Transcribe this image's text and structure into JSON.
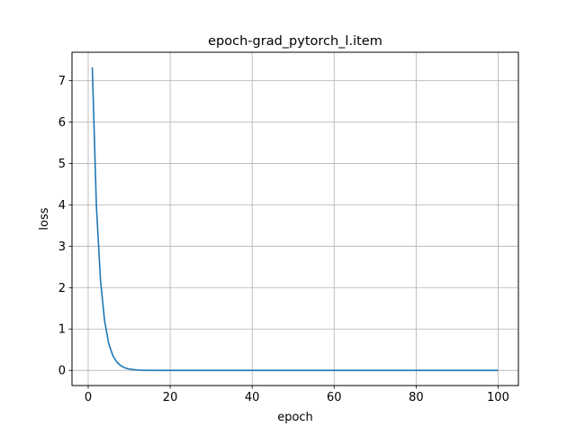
{
  "chart_data": {
    "type": "line",
    "title": "epoch-grad_pytorch_l.item",
    "xlabel": "epoch",
    "ylabel": "loss",
    "xlim": [
      -3.95,
      104.95
    ],
    "ylim": [
      -0.366,
      7.686
    ],
    "xticks": [
      0,
      20,
      40,
      60,
      80,
      100
    ],
    "yticks": [
      0,
      1,
      2,
      3,
      4,
      5,
      6,
      7
    ],
    "grid": true,
    "series": [
      {
        "color": "#1f77b4",
        "x": [
          1,
          2,
          3,
          4,
          5,
          6,
          7,
          8,
          9,
          10,
          11,
          12,
          13,
          14,
          15,
          16,
          17,
          18,
          19,
          20,
          25,
          30,
          40,
          50,
          60,
          70,
          80,
          90,
          100
        ],
        "y": [
          7.32,
          3.98,
          2.18,
          1.2,
          0.65,
          0.36,
          0.2,
          0.11,
          0.06,
          0.034,
          0.019,
          0.011,
          0.006,
          0.0035,
          0.002,
          0.0012,
          0.0007,
          0.0004,
          0.0002,
          0.0001,
          2e-05,
          0,
          0,
          0,
          0,
          0,
          0,
          0,
          0
        ]
      }
    ]
  }
}
